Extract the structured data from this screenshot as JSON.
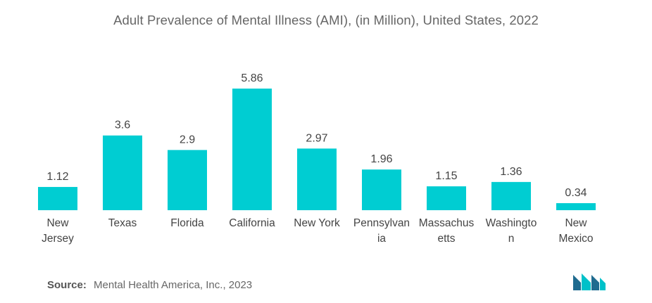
{
  "chart_data": {
    "type": "bar",
    "title": "Adult Prevalence of Mental Illness (AMI), (in Million), United States, 2022",
    "categories": [
      [
        "New",
        "Jersey"
      ],
      [
        "Texas"
      ],
      [
        "Florida"
      ],
      [
        "California"
      ],
      [
        "New York"
      ],
      [
        "Pennsylvan",
        "ia"
      ],
      [
        "Massachus",
        "etts"
      ],
      [
        "Washingto",
        "n"
      ],
      [
        "New",
        "Mexico"
      ]
    ],
    "values": [
      1.12,
      3.6,
      2.9,
      5.86,
      2.97,
      1.96,
      1.15,
      1.36,
      0.34
    ],
    "value_labels": [
      "1.12",
      "3.6",
      "2.9",
      "5.86",
      "2.97",
      "1.96",
      "1.15",
      "1.36",
      "0.34"
    ],
    "xlabel": "",
    "ylabel": "",
    "ylim": [
      0,
      5.86
    ],
    "grid": false,
    "legend": "none",
    "bar_color": "#00cdd2"
  },
  "source": {
    "label": "Source:",
    "text": "Mental Health America, Inc., 2023"
  },
  "logo": {
    "icon": "mordor-intelligence-logo-icon",
    "color_primary": "#1f6b8f",
    "color_accent": "#00c1c9"
  }
}
